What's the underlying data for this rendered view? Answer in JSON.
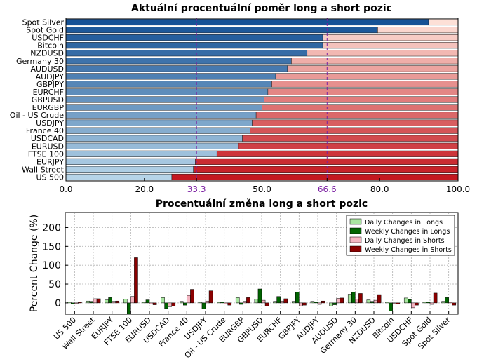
{
  "chart_data": [
    {
      "type": "bar",
      "orientation": "horizontal",
      "stacked": true,
      "title": "Aktuální procentuální poměr long a short pozic",
      "categories": [
        "Spot Silver",
        "Spot Gold",
        "USDCHF",
        "Bitcoin",
        "NZDUSD",
        "Germany 30",
        "AUDUSD",
        "AUDJPY",
        "GBPJPY",
        "EURCHF",
        "GBPUSD",
        "EURGBP",
        "Oil - US Crude",
        "USDJPY",
        "France 40",
        "USDCAD",
        "EURUSD",
        "FTSE 100",
        "EURJPY",
        "Wall Street",
        "US 500"
      ],
      "series": [
        {
          "name": "",
          "values": [
            92.5,
            79.5,
            65.5,
            65.5,
            61.5,
            57.5,
            56.5,
            53.5,
            52.5,
            51.5,
            50.5,
            50.0,
            48.5,
            47.5,
            47.0,
            45.0,
            44.0,
            38.5,
            33.0,
            32.5,
            27.0
          ]
        },
        {
          "name": "",
          "values": [
            7.5,
            20.5,
            34.5,
            34.5,
            38.5,
            42.5,
            43.5,
            46.5,
            47.5,
            48.5,
            49.5,
            50.0,
            51.5,
            52.5,
            53.0,
            55.0,
            56.0,
            61.5,
            67.0,
            67.5,
            73.0
          ]
        }
      ],
      "xlim": [
        0,
        100
      ],
      "xticks": [
        "0.0",
        "20.0",
        "33.3",
        "50.0",
        "66.6",
        "80.0",
        "100.0"
      ],
      "reference_lines": [
        33.3,
        50.0,
        66.6
      ]
    },
    {
      "type": "bar",
      "title": "Procentuální změna long a short pozic",
      "ylabel": "Percent Change (%)",
      "ylim": [
        -30,
        240
      ],
      "yticks": [
        "0",
        "50",
        "100",
        "150",
        "200"
      ],
      "grid": true,
      "legend_position": "top-right",
      "categories": [
        "US 500",
        "Wall Street",
        "EURJPY",
        "FTSE 100",
        "EURUSD",
        "USDCAD",
        "France 40",
        "USDJPY",
        "Oil - US Crude",
        "EURGBP",
        "GBPUSD",
        "EURCHF",
        "GBPJPY",
        "AUDJPY",
        "AUDUSD",
        "Germany 30",
        "NZDUSD",
        "Bitcoin",
        "USDCHF",
        "Spot Gold",
        "Spot Silver"
      ],
      "series": [
        {
          "name": "Daily Changes in Longs",
          "values": [
            3,
            5,
            8,
            10,
            2,
            14,
            4,
            2,
            2,
            14,
            10,
            4,
            4,
            4,
            -8,
            23,
            8,
            3,
            13,
            3,
            4
          ]
        },
        {
          "name": "Weekly Changes in Longs",
          "values": [
            -3,
            4,
            14,
            -30,
            8,
            -15,
            -6,
            -16,
            3,
            -4,
            37,
            17,
            29,
            3,
            -5,
            28,
            4,
            -22,
            9,
            3,
            14
          ]
        },
        {
          "name": "Daily Changes in Shorts",
          "values": [
            -2,
            11,
            4,
            17,
            -3,
            -10,
            20,
            5,
            -3,
            4,
            7,
            5,
            -8,
            -4,
            12,
            10,
            7,
            -2,
            -13,
            -4,
            2
          ]
        },
        {
          "name": "Weekly Changes in Shorts",
          "values": [
            3,
            11,
            5,
            120,
            -5,
            -8,
            36,
            32,
            -6,
            14,
            -8,
            11,
            -6,
            5,
            13,
            25,
            22,
            -3,
            -6,
            26,
            -6
          ]
        }
      ]
    }
  ]
}
